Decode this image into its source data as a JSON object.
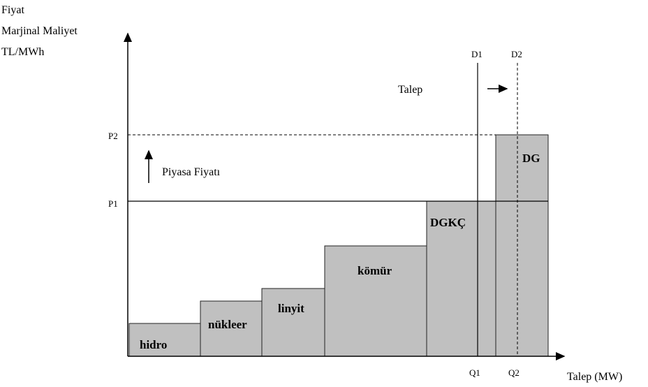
{
  "axes": {
    "y_label": [
      "Fiyat",
      "Marjinal Maliyet",
      "TL/MWh"
    ],
    "x_label": "Talep (MW)"
  },
  "price_levels": {
    "p1": "P1",
    "p2": "P2"
  },
  "demand_curves": {
    "d1": "D1",
    "d2": "D2"
  },
  "quantities": {
    "q1": "Q1",
    "q2": "Q2"
  },
  "annotations": {
    "demand": "Talep",
    "market_price": "Piyasa Fiyatı"
  },
  "blocks": [
    "hidro",
    "nükleer",
    "linyit",
    "kömür",
    "DGKÇ",
    "DG"
  ]
}
